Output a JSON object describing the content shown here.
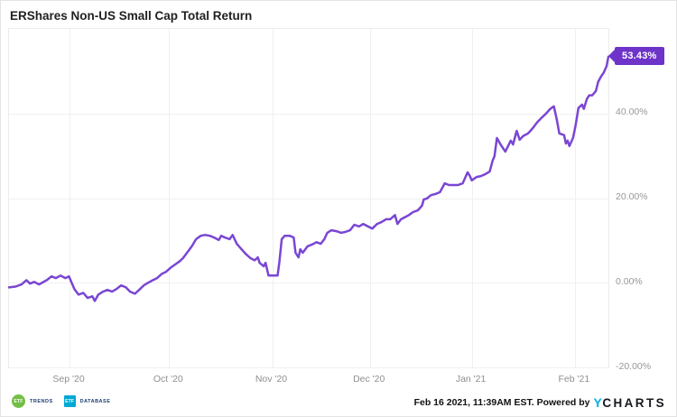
{
  "header": {
    "title": "ERShares Non-US Small Cap Total Return"
  },
  "chart_data": {
    "type": "line",
    "title": "ERShares Non-US Small Cap Total Return",
    "series": [
      {
        "name": "ERShares Non-US Small Cap Total Return",
        "unit": "percent_total_return"
      }
    ],
    "line_color": "#7a46d3",
    "grid": true,
    "legend_position": "none",
    "ylim": [
      -20,
      60
    ],
    "y_ticks": [
      {
        "value": 40,
        "label": "40.00%"
      },
      {
        "value": 20,
        "label": "20.00%"
      },
      {
        "value": 0,
        "label": "0.00%"
      },
      {
        "value": -20,
        "label": "-20.00%"
      }
    ],
    "x_ticks": [
      {
        "pos": 0.101,
        "label": "Sep '20"
      },
      {
        "pos": 0.267,
        "label": "Oct '20"
      },
      {
        "pos": 0.439,
        "label": "Nov '20"
      },
      {
        "pos": 0.602,
        "label": "Dec '20"
      },
      {
        "pos": 0.772,
        "label": "Jan '21"
      },
      {
        "pos": 0.944,
        "label": "Feb '21"
      }
    ],
    "end_label": {
      "text": "53.43%",
      "bg": "#6e33c9",
      "color": "#ffffff"
    },
    "points": [
      [
        0.0,
        -1.1
      ],
      [
        0.011,
        -0.9
      ],
      [
        0.021,
        -0.4
      ],
      [
        0.029,
        0.6
      ],
      [
        0.035,
        -0.2
      ],
      [
        0.042,
        0.2
      ],
      [
        0.05,
        -0.4
      ],
      [
        0.063,
        0.6
      ],
      [
        0.071,
        1.5
      ],
      [
        0.078,
        1.1
      ],
      [
        0.086,
        1.7
      ],
      [
        0.094,
        1.1
      ],
      [
        0.1,
        1.5
      ],
      [
        0.109,
        -1.5
      ],
      [
        0.116,
        -2.8
      ],
      [
        0.124,
        -2.4
      ],
      [
        0.131,
        -3.6
      ],
      [
        0.139,
        -3.2
      ],
      [
        0.143,
        -4.3
      ],
      [
        0.149,
        -2.8
      ],
      [
        0.157,
        -2.1
      ],
      [
        0.164,
        -1.7
      ],
      [
        0.172,
        -2.1
      ],
      [
        0.179,
        -1.5
      ],
      [
        0.187,
        -0.6
      ],
      [
        0.195,
        -1.1
      ],
      [
        0.202,
        -2.1
      ],
      [
        0.21,
        -2.6
      ],
      [
        0.217,
        -1.7
      ],
      [
        0.225,
        -0.6
      ],
      [
        0.232,
        0.0
      ],
      [
        0.24,
        0.6
      ],
      [
        0.247,
        1.1
      ],
      [
        0.255,
        2.1
      ],
      [
        0.262,
        2.6
      ],
      [
        0.27,
        3.6
      ],
      [
        0.277,
        4.3
      ],
      [
        0.285,
        5.1
      ],
      [
        0.29,
        5.8
      ],
      [
        0.297,
        7.1
      ],
      [
        0.305,
        8.6
      ],
      [
        0.312,
        10.3
      ],
      [
        0.32,
        11.1
      ],
      [
        0.327,
        11.3
      ],
      [
        0.335,
        11.1
      ],
      [
        0.342,
        10.7
      ],
      [
        0.35,
        10.1
      ],
      [
        0.354,
        11.1
      ],
      [
        0.36,
        10.7
      ],
      [
        0.368,
        10.3
      ],
      [
        0.373,
        11.3
      ],
      [
        0.38,
        9.2
      ],
      [
        0.388,
        7.9
      ],
      [
        0.395,
        6.8
      ],
      [
        0.403,
        5.8
      ],
      [
        0.41,
        5.3
      ],
      [
        0.415,
        6.0
      ],
      [
        0.418,
        4.7
      ],
      [
        0.425,
        3.9
      ],
      [
        0.428,
        4.7
      ],
      [
        0.433,
        1.7
      ],
      [
        0.44,
        1.7
      ],
      [
        0.448,
        1.7
      ],
      [
        0.451,
        4.9
      ],
      [
        0.455,
        10.3
      ],
      [
        0.46,
        11.1
      ],
      [
        0.468,
        11.1
      ],
      [
        0.475,
        10.7
      ],
      [
        0.478,
        7.1
      ],
      [
        0.483,
        6.0
      ],
      [
        0.486,
        7.9
      ],
      [
        0.49,
        7.1
      ],
      [
        0.498,
        8.6
      ],
      [
        0.505,
        9.0
      ],
      [
        0.513,
        9.6
      ],
      [
        0.52,
        9.2
      ],
      [
        0.526,
        10.3
      ],
      [
        0.531,
        11.8
      ],
      [
        0.538,
        12.4
      ],
      [
        0.546,
        12.2
      ],
      [
        0.554,
        11.8
      ],
      [
        0.561,
        12.0
      ],
      [
        0.569,
        12.4
      ],
      [
        0.576,
        13.7
      ],
      [
        0.584,
        13.3
      ],
      [
        0.591,
        13.9
      ],
      [
        0.599,
        13.3
      ],
      [
        0.606,
        12.8
      ],
      [
        0.614,
        13.9
      ],
      [
        0.621,
        14.3
      ],
      [
        0.629,
        15.0
      ],
      [
        0.636,
        15.0
      ],
      [
        0.644,
        16.0
      ],
      [
        0.648,
        13.9
      ],
      [
        0.654,
        15.0
      ],
      [
        0.662,
        15.6
      ],
      [
        0.667,
        16.0
      ],
      [
        0.674,
        16.7
      ],
      [
        0.682,
        17.1
      ],
      [
        0.689,
        18.2
      ],
      [
        0.692,
        19.7
      ],
      [
        0.697,
        19.9
      ],
      [
        0.704,
        20.7
      ],
      [
        0.712,
        21.0
      ],
      [
        0.719,
        21.4
      ],
      [
        0.727,
        23.5
      ],
      [
        0.734,
        23.1
      ],
      [
        0.742,
        23.1
      ],
      [
        0.749,
        23.1
      ],
      [
        0.757,
        23.5
      ],
      [
        0.765,
        26.1
      ],
      [
        0.769,
        25.2
      ],
      [
        0.772,
        24.2
      ],
      [
        0.78,
        25.0
      ],
      [
        0.787,
        25.2
      ],
      [
        0.795,
        25.7
      ],
      [
        0.802,
        26.3
      ],
      [
        0.807,
        28.9
      ],
      [
        0.81,
        29.9
      ],
      [
        0.814,
        34.2
      ],
      [
        0.82,
        32.7
      ],
      [
        0.828,
        31.0
      ],
      [
        0.832,
        32.1
      ],
      [
        0.837,
        33.6
      ],
      [
        0.841,
        32.7
      ],
      [
        0.847,
        35.9
      ],
      [
        0.852,
        33.8
      ],
      [
        0.858,
        34.7
      ],
      [
        0.866,
        35.3
      ],
      [
        0.873,
        36.4
      ],
      [
        0.881,
        37.9
      ],
      [
        0.888,
        38.9
      ],
      [
        0.896,
        40.0
      ],
      [
        0.903,
        41.1
      ],
      [
        0.909,
        41.7
      ],
      [
        0.914,
        38.5
      ],
      [
        0.918,
        35.3
      ],
      [
        0.926,
        34.9
      ],
      [
        0.929,
        32.9
      ],
      [
        0.932,
        33.6
      ],
      [
        0.935,
        32.3
      ],
      [
        0.941,
        34.2
      ],
      [
        0.945,
        37.0
      ],
      [
        0.95,
        41.3
      ],
      [
        0.956,
        42.1
      ],
      [
        0.959,
        41.1
      ],
      [
        0.964,
        43.4
      ],
      [
        0.968,
        44.3
      ],
      [
        0.973,
        44.3
      ],
      [
        0.979,
        45.3
      ],
      [
        0.983,
        47.5
      ],
      [
        0.988,
        48.8
      ],
      [
        0.992,
        49.6
      ],
      [
        0.997,
        51.2
      ],
      [
        1.0,
        53.43
      ]
    ]
  },
  "footer": {
    "logos": [
      {
        "badge": "ETF",
        "label": "TRENDS",
        "color": "#72bf44",
        "shape": "circle"
      },
      {
        "badge": "ETF",
        "label": "DATABASE",
        "color": "#00a8d4",
        "shape": "square"
      }
    ],
    "attribution": {
      "timestamp": "Feb 16 2021, 11:39AM EST.",
      "powered_by": "Powered by",
      "brand_y": "Y",
      "brand_rest": "CHARTS",
      "brand_y_color": "#00b2e3"
    }
  }
}
